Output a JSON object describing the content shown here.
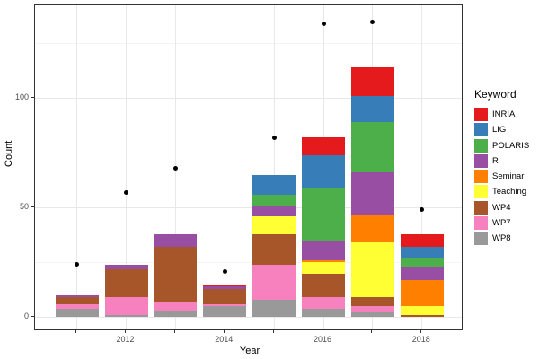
{
  "chart_data": {
    "type": "bar",
    "stacked": true,
    "title": "",
    "xlabel": "Year",
    "ylabel": "Count",
    "legend_title": "Keyword",
    "legend_position": "right",
    "grid": true,
    "background": "#ffffff",
    "x": [
      2011,
      2012,
      2013,
      2014,
      2015,
      2016,
      2017,
      2018
    ],
    "x_tick_labeled_years": [
      2012,
      2014,
      2016,
      2018
    ],
    "y_ticks": [
      0,
      50,
      100
    ],
    "y_minor_ticks": [
      25,
      75,
      125
    ],
    "ylim": [
      -6.5,
      142.5
    ],
    "stack_order_bottom_to_top": [
      "WP8",
      "WP7",
      "WP4",
      "Teaching",
      "Seminar",
      "R",
      "POLARIS",
      "LIG",
      "INRIA"
    ],
    "series": [
      {
        "name": "INRIA",
        "color": "#E41A1C",
        "values": [
          0,
          0,
          0,
          1,
          0,
          8,
          13,
          6
        ]
      },
      {
        "name": "LIG",
        "color": "#377EB8",
        "values": [
          0,
          0,
          0,
          0,
          9,
          15,
          12,
          5
        ]
      },
      {
        "name": "POLARIS",
        "color": "#4DAF4A",
        "values": [
          0,
          0,
          0,
          0,
          5,
          24,
          23,
          4
        ]
      },
      {
        "name": "R",
        "color": "#984EA3",
        "values": [
          1,
          2,
          6,
          1,
          5,
          9,
          19,
          6
        ]
      },
      {
        "name": "Seminar",
        "color": "#FF7F00",
        "values": [
          0,
          0,
          0,
          0,
          0,
          1,
          13,
          12
        ]
      },
      {
        "name": "Teaching",
        "color": "#FFFF33",
        "values": [
          0,
          0,
          0,
          0,
          8,
          5,
          25,
          4
        ]
      },
      {
        "name": "WP4",
        "color": "#A65628",
        "values": [
          3,
          13,
          25,
          7,
          14,
          11,
          4,
          1
        ]
      },
      {
        "name": "WP7",
        "color": "#F781BF",
        "values": [
          2,
          8,
          4,
          1,
          16,
          5,
          3,
          0
        ]
      },
      {
        "name": "WP8",
        "color": "#999999",
        "values": [
          4,
          1,
          3,
          5,
          8,
          4,
          2,
          0
        ]
      }
    ],
    "bar_totals": [
      10,
      24,
      38,
      15,
      65,
      82,
      114,
      38
    ],
    "points": {
      "name": "yearly-total-dots",
      "color": "#000000",
      "values": [
        24,
        57,
        68,
        21,
        82,
        134,
        135,
        49
      ]
    }
  }
}
